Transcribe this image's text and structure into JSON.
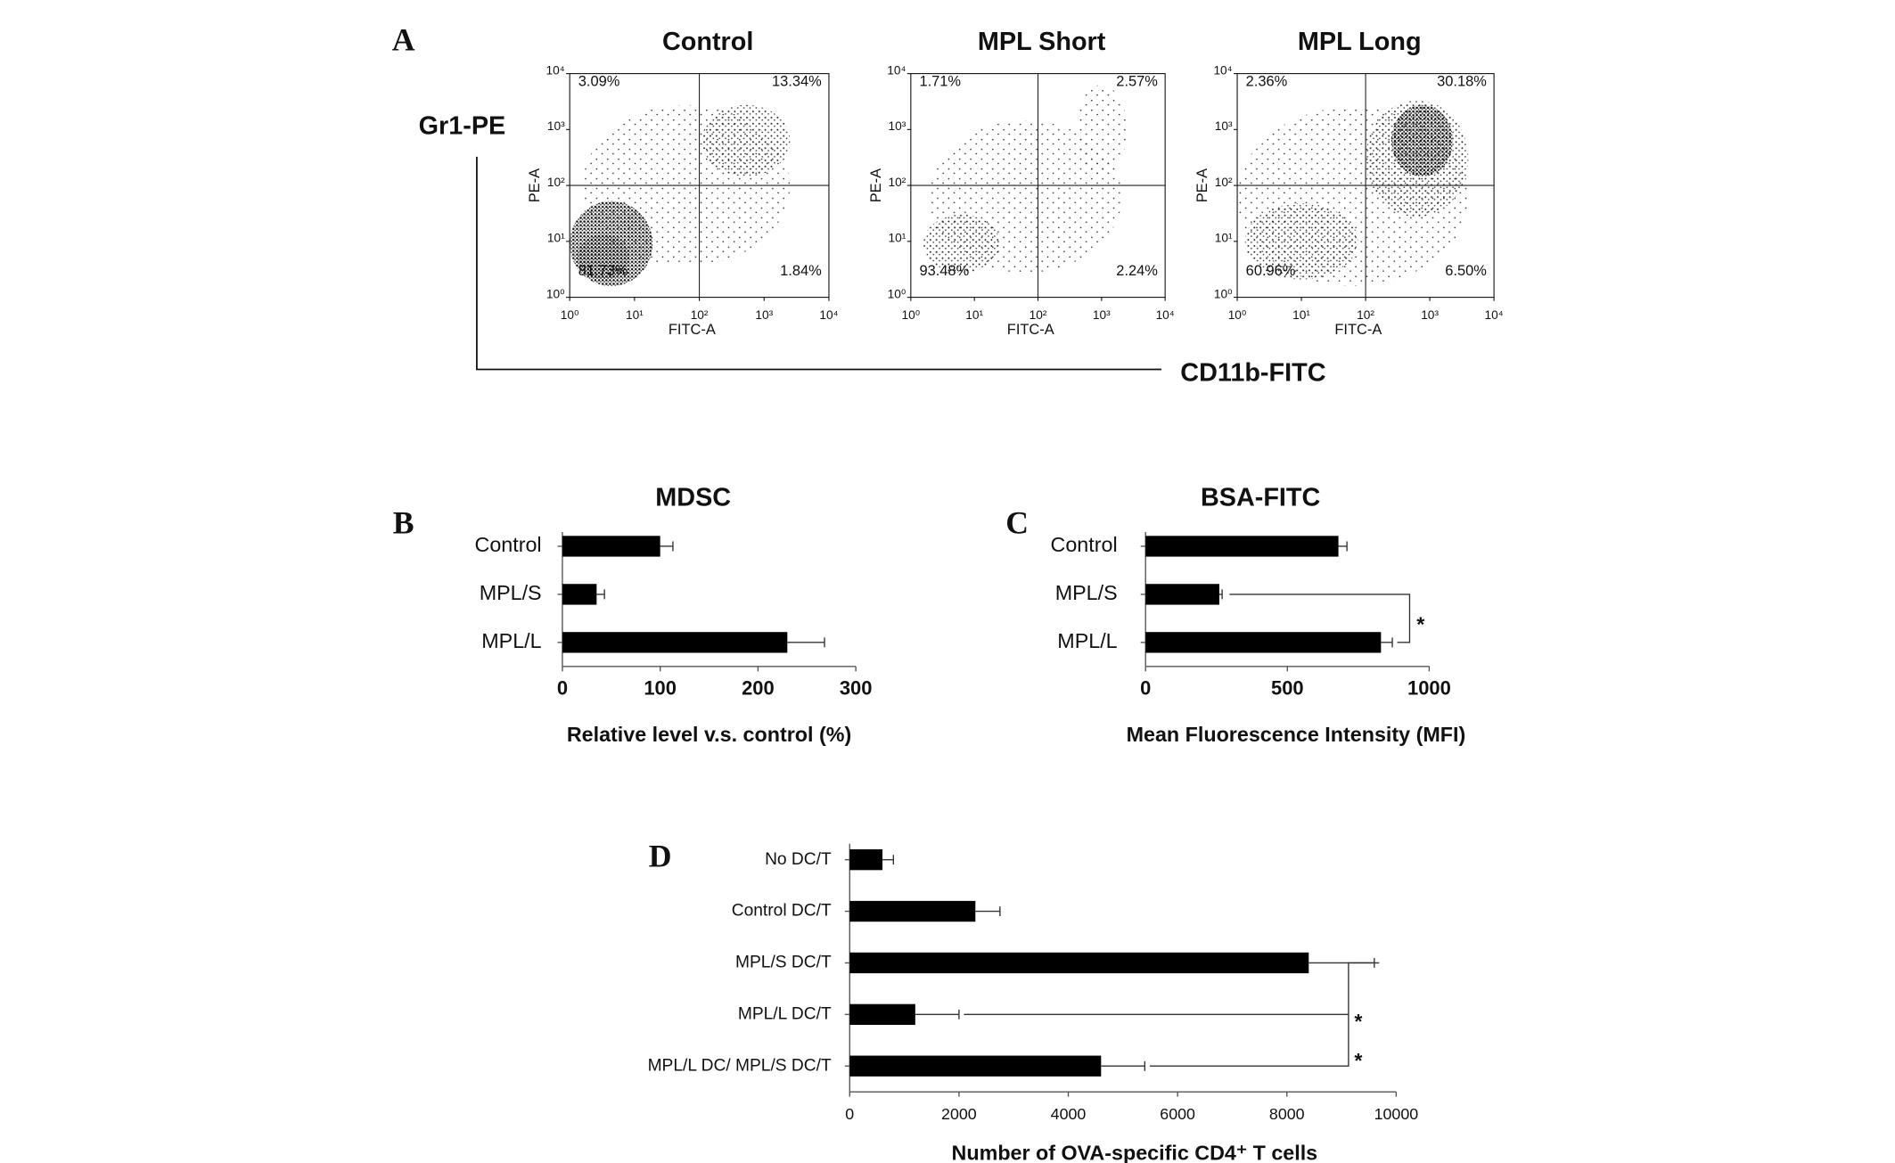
{
  "panel_a": {
    "label": "A",
    "y_label": "Gr1-PE",
    "x_label": "CD11b-FITC"
  },
  "chart_data": [
    {
      "type": "scatter",
      "title": "Control",
      "x_label": "FITC-A",
      "y_label": "PE-A",
      "log_scale": true,
      "xlim": [
        1,
        10000
      ],
      "ylim": [
        1,
        10000
      ],
      "xticks": [
        {
          "value": 1,
          "label": "10⁰"
        },
        {
          "value": 10,
          "label": "10¹"
        },
        {
          "value": 100,
          "label": "10²"
        },
        {
          "value": 1000,
          "label": "10³"
        },
        {
          "value": 10000,
          "label": "10⁴"
        }
      ],
      "yticks": [
        {
          "value": 1,
          "label": "10⁰"
        },
        {
          "value": 10,
          "label": "10¹"
        },
        {
          "value": 100,
          "label": "10²"
        },
        {
          "value": 1000,
          "label": "10³"
        },
        {
          "value": 10000,
          "label": "10⁴"
        }
      ],
      "gates": [
        100,
        100
      ],
      "quadrant_labels": [
        "3.09%",
        "13.34%",
        "81.73%",
        "1.84%"
      ]
    },
    {
      "type": "scatter",
      "title": "MPL Short",
      "x_label": "FITC-A",
      "y_label": "PE-A",
      "log_scale": true,
      "xlim": [
        1,
        10000
      ],
      "ylim": [
        1,
        10000
      ],
      "xticks": [
        {
          "value": 1,
          "label": "10⁰"
        },
        {
          "value": 10,
          "label": "10¹"
        },
        {
          "value": 100,
          "label": "10²"
        },
        {
          "value": 1000,
          "label": "10³"
        },
        {
          "value": 10000,
          "label": "10⁴"
        }
      ],
      "yticks": [
        {
          "value": 1,
          "label": "10⁰"
        },
        {
          "value": 10,
          "label": "10¹"
        },
        {
          "value": 100,
          "label": "10²"
        },
        {
          "value": 1000,
          "label": "10³"
        },
        {
          "value": 10000,
          "label": "10⁴"
        }
      ],
      "gates": [
        100,
        100
      ],
      "quadrant_labels": [
        "1.71%",
        "2.57%",
        "93.48%",
        "2.24%"
      ]
    },
    {
      "type": "scatter",
      "title": "MPL Long",
      "x_label": "FITC-A",
      "y_label": "PE-A",
      "log_scale": true,
      "xlim": [
        1,
        10000
      ],
      "ylim": [
        1,
        10000
      ],
      "xticks": [
        {
          "value": 1,
          "label": "10⁰"
        },
        {
          "value": 10,
          "label": "10¹"
        },
        {
          "value": 100,
          "label": "10²"
        },
        {
          "value": 1000,
          "label": "10³"
        },
        {
          "value": 10000,
          "label": "10⁴"
        }
      ],
      "yticks": [
        {
          "value": 1,
          "label": "10⁰"
        },
        {
          "value": 10,
          "label": "10¹"
        },
        {
          "value": 100,
          "label": "10²"
        },
        {
          "value": 1000,
          "label": "10³"
        },
        {
          "value": 10000,
          "label": "10⁴"
        }
      ],
      "gates": [
        100,
        100
      ],
      "quadrant_labels": [
        "2.36%",
        "30.18%",
        "60.96%",
        "6.50%"
      ]
    },
    {
      "type": "barh",
      "panel": "B",
      "title": "MDSC",
      "x_label": "Relative level v.s. control  (%)",
      "categories": [
        "Control",
        "MPL/S",
        "MPL/L"
      ],
      "values": [
        100,
        35,
        230
      ],
      "errors": [
        13,
        8,
        38
      ],
      "color": "#000000",
      "xlim": [
        0,
        300
      ],
      "xticks": [
        0,
        100,
        200,
        300
      ]
    },
    {
      "type": "barh",
      "panel": "C",
      "title": "BSA-FITC",
      "x_label": "Mean Fluorescence Intensity (MFI)",
      "categories": [
        "Control",
        "MPL/S",
        "MPL/L"
      ],
      "values": [
        680,
        260,
        830
      ],
      "errors": [
        30,
        10,
        40
      ],
      "color": "#000000",
      "xlim": [
        0,
        1000
      ],
      "xticks": [
        0,
        500,
        1000
      ],
      "annotations": [
        "*"
      ]
    },
    {
      "type": "barh",
      "panel": "D",
      "x_label": "Number  of OVA-specific CD4⁺ T cells",
      "categories": [
        "No DC/T",
        "Control DC/T",
        "MPL/S DC/T",
        "MPL/L DC/T",
        "MPL/L DC/ MPL/S DC/T"
      ],
      "values": [
        600,
        2300,
        8400,
        1200,
        4600
      ],
      "errors": [
        200,
        450,
        1200,
        800,
        800
      ],
      "color": "#000000",
      "xlim": [
        0,
        10000
      ],
      "xticks": [
        0,
        2000,
        4000,
        6000,
        8000,
        10000
      ],
      "annotations": [
        "*",
        "*"
      ]
    }
  ]
}
